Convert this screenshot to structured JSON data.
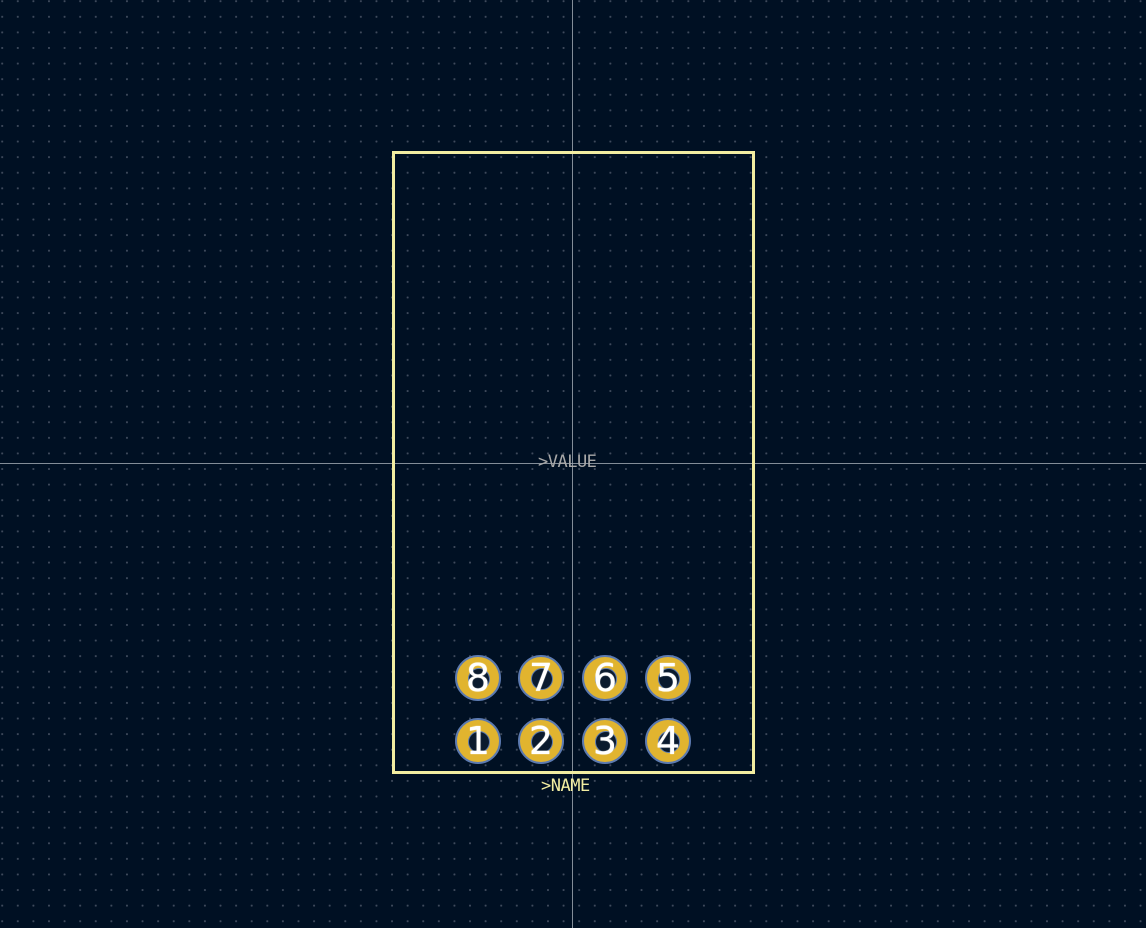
{
  "footprint": {
    "value_label": ">VALUE",
    "name_label": ">NAME"
  },
  "pads": {
    "top_row": [
      "8",
      "7",
      "6",
      "5"
    ],
    "bottom_row": [
      "1",
      "2",
      "3",
      "4"
    ]
  },
  "colors": {
    "background": "#001023",
    "silkscreen": "#f2eda1",
    "pad_copper": "#e1b42f",
    "pad_outline": "#5c7ab0",
    "value_text": "#a8a8a8",
    "crosshair": "#9aa3ad"
  }
}
